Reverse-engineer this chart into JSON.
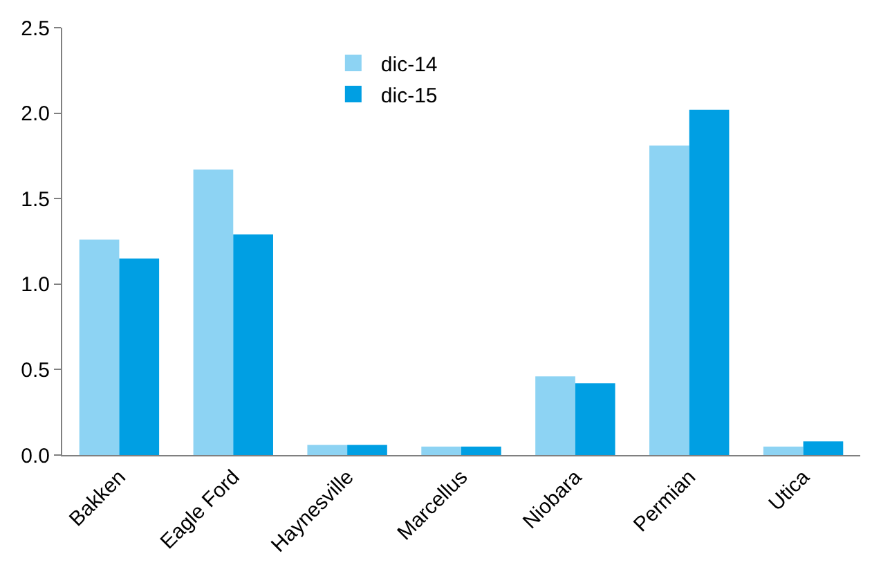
{
  "chart_data": {
    "type": "bar",
    "categories": [
      "Bakken",
      "Eagle Ford",
      "Haynesville",
      "Marcellus",
      "Niobara",
      "Permian",
      "Utica"
    ],
    "series": [
      {
        "name": "dic-14",
        "color": "#8dd3f3",
        "values": [
          1.26,
          1.67,
          0.06,
          0.05,
          0.46,
          1.81,
          0.05
        ]
      },
      {
        "name": "dic-15",
        "color": "#009fe3",
        "values": [
          1.15,
          1.29,
          0.06,
          0.05,
          0.42,
          2.02,
          0.08
        ]
      }
    ],
    "ylim": [
      0,
      2.5
    ],
    "yticks": [
      {
        "value": 0,
        "label": "0.0"
      },
      {
        "value": 0.5,
        "label": "0.5"
      },
      {
        "value": 1,
        "label": "1.0"
      },
      {
        "value": 1.5,
        "label": "1.5"
      },
      {
        "value": 2,
        "label": "2.0"
      },
      {
        "value": 2.5,
        "label": "2.5"
      }
    ],
    "legend": "top"
  }
}
